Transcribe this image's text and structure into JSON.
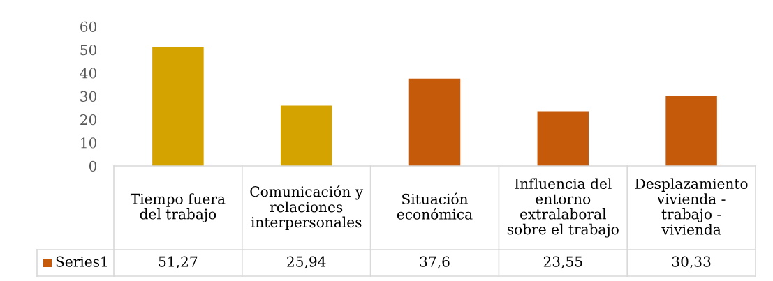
{
  "chart_data": {
    "type": "bar",
    "categories": [
      "Tiempo fuera del trabajo",
      "Comunicación y relaciones interpersonales",
      "Situación económica",
      "Influencia del entorno extralaboral sobre el trabajo",
      "Desplazamiento vivienda - trabajo - vivienda"
    ],
    "series": [
      {
        "name": "Series1",
        "color": "#c55a0b",
        "colors": [
          "#d5a300",
          "#d5a300",
          "#c55a0b",
          "#c55a0b",
          "#c55a0b"
        ],
        "values": [
          51.27,
          25.94,
          37.6,
          23.55,
          30.33
        ],
        "value_labels": [
          "51,27",
          "25,94",
          "37,6",
          "23,55",
          "30,33"
        ]
      }
    ],
    "ylim": [
      0,
      60
    ],
    "yticks": [
      0,
      10,
      20,
      30,
      40,
      50,
      60
    ],
    "legend": "bottom"
  }
}
